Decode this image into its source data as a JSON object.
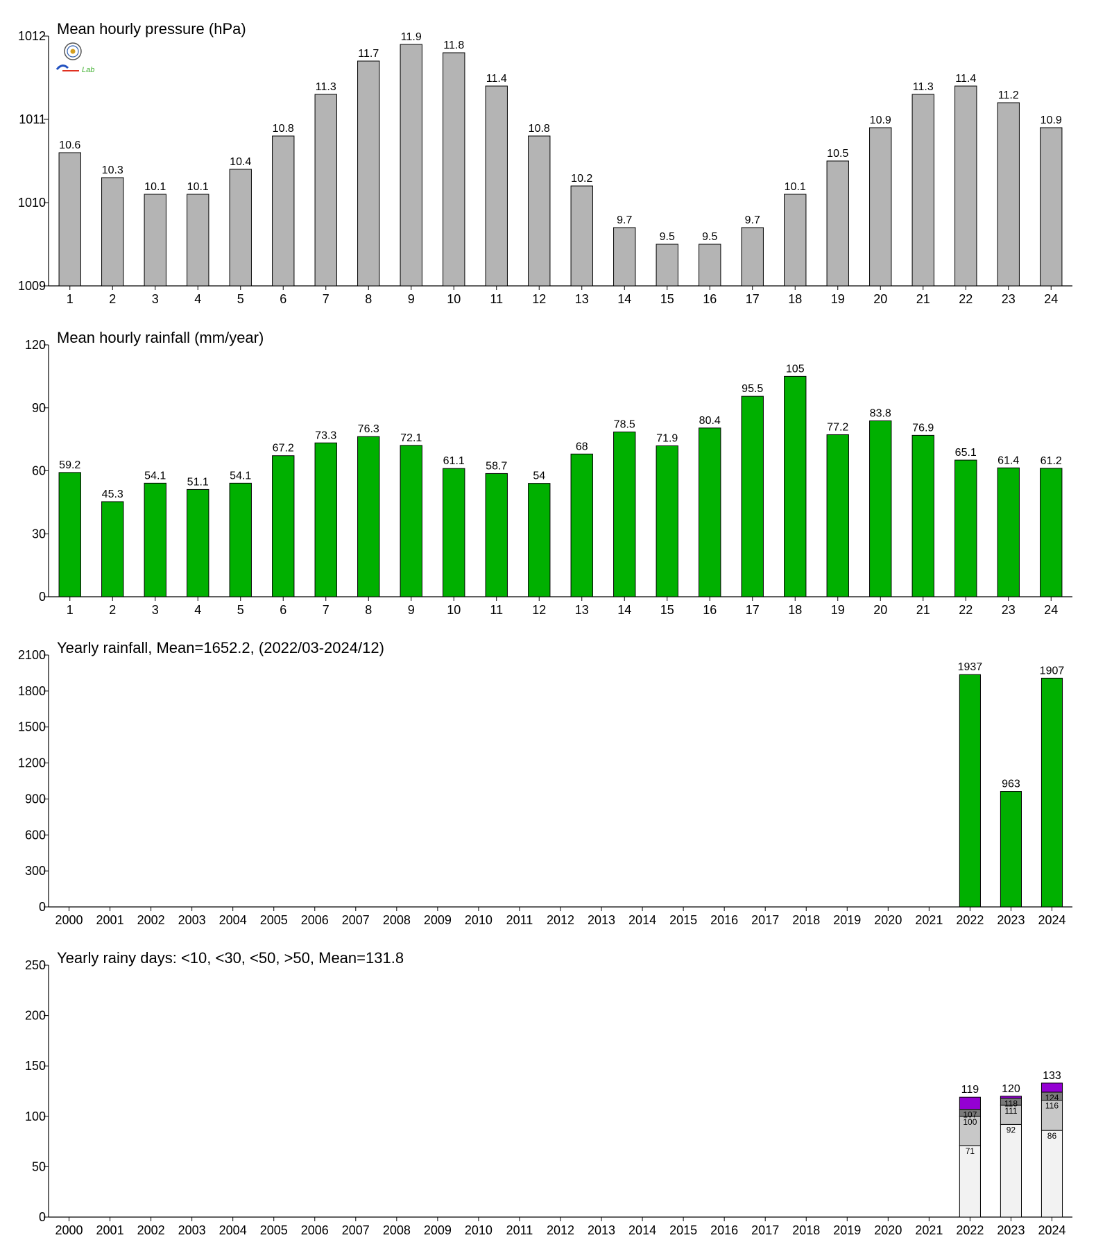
{
  "colors": {
    "gray_bar": "#b4b4b4",
    "green_bar": "#00b000",
    "purple": "#9400d3",
    "dark_gray": "#7a7a7a",
    "light_gray": "#c8c8c8",
    "white_seg": "#f2f2f2"
  },
  "logo": {
    "icon": "weather-lab-logo",
    "text": "Lab"
  },
  "chart_data": [
    {
      "type": "bar",
      "title": "Mean hourly pressure (hPa)",
      "categories": [
        "1",
        "2",
        "3",
        "4",
        "5",
        "6",
        "7",
        "8",
        "9",
        "10",
        "11",
        "12",
        "13",
        "14",
        "15",
        "16",
        "17",
        "18",
        "19",
        "20",
        "21",
        "22",
        "23",
        "24"
      ],
      "values": [
        1010.6,
        1010.3,
        1010.1,
        1010.1,
        1010.4,
        1010.8,
        1011.3,
        1011.7,
        1011.9,
        1011.8,
        1011.4,
        1010.8,
        1010.2,
        1009.7,
        1009.5,
        1009.5,
        1009.7,
        1010.1,
        1010.5,
        1010.9,
        1011.3,
        1011.4,
        1011.2,
        1010.9
      ],
      "labels": [
        "10.6",
        "10.3",
        "10.1",
        "10.1",
        "10.4",
        "10.8",
        "11.3",
        "11.7",
        "11.9",
        "11.8",
        "11.4",
        "10.8",
        "10.2",
        "9.7",
        "9.5",
        "9.5",
        "9.7",
        "10.1",
        "10.5",
        "10.9",
        "11.3",
        "11.4",
        "11.2",
        "10.9"
      ],
      "ylim": [
        1009,
        1012
      ],
      "yticks": [
        "1009",
        "1010",
        "1011",
        "1012"
      ],
      "color": "#b4b4b4"
    },
    {
      "type": "bar",
      "title": "Mean hourly rainfall (mm/year)",
      "categories": [
        "1",
        "2",
        "3",
        "4",
        "5",
        "6",
        "7",
        "8",
        "9",
        "10",
        "11",
        "12",
        "13",
        "14",
        "15",
        "16",
        "17",
        "18",
        "19",
        "20",
        "21",
        "22",
        "23",
        "24"
      ],
      "values": [
        59.2,
        45.3,
        54.1,
        51.1,
        54.1,
        67.2,
        73.3,
        76.3,
        72.1,
        61.1,
        58.7,
        54,
        68,
        78.5,
        71.9,
        80.4,
        95.5,
        105,
        77.2,
        83.8,
        76.9,
        65.1,
        61.4,
        61.2
      ],
      "labels": [
        "59.2",
        "45.3",
        "54.1",
        "51.1",
        "54.1",
        "67.2",
        "73.3",
        "76.3",
        "72.1",
        "61.1",
        "58.7",
        "54",
        "68",
        "78.5",
        "71.9",
        "80.4",
        "95.5",
        "105",
        "77.2",
        "83.8",
        "76.9",
        "65.1",
        "61.4",
        "61.2"
      ],
      "ylim": [
        0,
        120
      ],
      "yticks": [
        "0",
        "30",
        "60",
        "90",
        "120"
      ],
      "color": "#00b000"
    },
    {
      "type": "bar",
      "title": "Yearly rainfall, Mean=1652.2, (2022/03-2024/12)",
      "categories": [
        "2000",
        "2001",
        "2002",
        "2003",
        "2004",
        "2005",
        "2006",
        "2007",
        "2008",
        "2009",
        "2010",
        "2011",
        "2012",
        "2013",
        "2014",
        "2015",
        "2016",
        "2017",
        "2018",
        "2019",
        "2020",
        "2021",
        "2022",
        "2023",
        "2024"
      ],
      "values": [
        null,
        null,
        null,
        null,
        null,
        null,
        null,
        null,
        null,
        null,
        null,
        null,
        null,
        null,
        null,
        null,
        null,
        null,
        null,
        null,
        null,
        null,
        1937,
        963,
        1907
      ],
      "labels": [
        "",
        "",
        "",
        "",
        "",
        "",
        "",
        "",
        "",
        "",
        "",
        "",
        "",
        "",
        "",
        "",
        "",
        "",
        "",
        "",
        "",
        "",
        "1937",
        "963",
        "1907"
      ],
      "ylim": [
        0,
        2100
      ],
      "yticks": [
        "0",
        "300",
        "600",
        "900",
        "1200",
        "1500",
        "1800",
        "2100"
      ],
      "color": "#00b000"
    },
    {
      "type": "stacked-bar",
      "title": "Yearly rainy days: <10, <30, <50, >50, Mean=131.8",
      "categories": [
        "2000",
        "2001",
        "2002",
        "2003",
        "2004",
        "2005",
        "2006",
        "2007",
        "2008",
        "2009",
        "2010",
        "2011",
        "2012",
        "2013",
        "2014",
        "2015",
        "2016",
        "2017",
        "2018",
        "2019",
        "2020",
        "2021",
        "2022",
        "2023",
        "2024"
      ],
      "stacks": [
        {
          "category": "2022",
          "cumulative": [
            71,
            100,
            107,
            119
          ],
          "labels": [
            "71",
            "100",
            "107",
            ""
          ],
          "total_label": "119"
        },
        {
          "category": "2023",
          "cumulative": [
            92,
            111,
            118,
            120
          ],
          "labels": [
            "92",
            "111",
            "118",
            ""
          ],
          "total_label": "120"
        },
        {
          "category": "2024",
          "cumulative": [
            86,
            116,
            124,
            133
          ],
          "labels": [
            "86",
            "116",
            "124",
            ""
          ],
          "total_label": "133"
        }
      ],
      "segment_colors": [
        "#f2f2f2",
        "#c8c8c8",
        "#7a7a7a",
        "#9400d3"
      ],
      "ylim": [
        0,
        250
      ],
      "yticks": [
        "0",
        "50",
        "100",
        "150",
        "200",
        "250"
      ]
    }
  ]
}
